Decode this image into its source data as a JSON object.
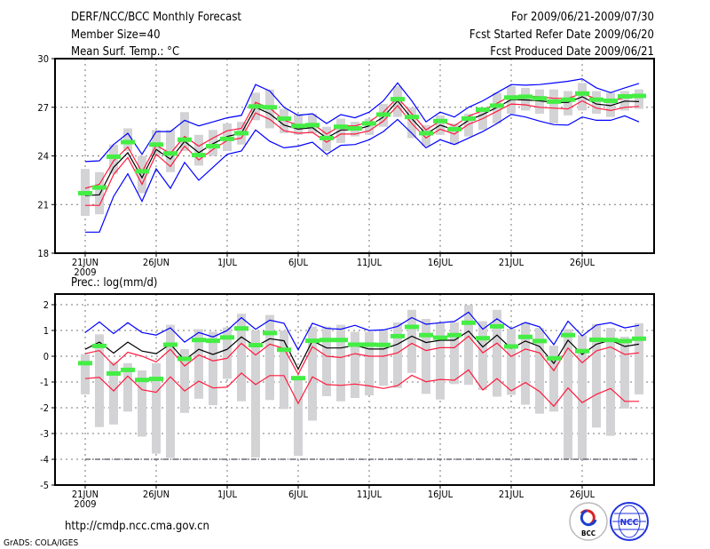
{
  "header": {
    "title": "DERF/NCC/BCC Monthly Forecast",
    "member_size": "Member Size=40",
    "period": "For 2009/06/21-2009/07/30",
    "started": "Fcst Started Refer Date 2009/06/20",
    "produced": "Fcst Produced Date 2009/06/21"
  },
  "footer": {
    "url": "http://cmdp.ncc.cma.gov.cn",
    "credit": "GrADS: COLA/IGES",
    "logos": [
      "BCC",
      "NCC"
    ]
  },
  "colors": {
    "mean": "#000000",
    "spread": "#ff1a3c",
    "envelope": "#0000ff",
    "observed": "#44ee44",
    "box": "#d3d3d6"
  },
  "chart_data": [
    {
      "type": "line",
      "title": "Mean Surf. Temp.: °C",
      "xlabel": "",
      "ylabel": "",
      "ylim": [
        18,
        30
      ],
      "yticks": [
        "18",
        "21",
        "24",
        "27",
        "30"
      ],
      "ytick_values": [
        18,
        21,
        24,
        27,
        30
      ],
      "xticks": [
        "21JUN",
        "26JUN",
        "1JUL",
        "6JUL",
        "11JUL",
        "16JUL",
        "21JUL",
        "26JUL"
      ],
      "xtick_days": [
        0,
        5,
        10,
        15,
        20,
        25,
        30,
        35
      ],
      "year_label": "2009",
      "grid": true,
      "n_days": 40,
      "series": [
        {
          "name": "ensemble-max",
          "color": "envelope",
          "values": [
            23.65,
            23.7,
            24.7,
            25.4,
            24.1,
            25.5,
            25.5,
            26.2,
            25.85,
            26.1,
            26.35,
            26.5,
            28.4,
            28.0,
            27.0,
            26.5,
            26.6,
            26.0,
            26.55,
            26.35,
            26.7,
            27.4,
            28.5,
            27.4,
            26.1,
            26.7,
            26.4,
            27.0,
            27.4,
            27.9,
            28.4,
            28.36,
            28.4,
            28.5,
            28.6,
            28.75,
            28.2,
            27.9,
            28.2,
            28.47
          ]
        },
        {
          "name": "ensemble-min",
          "color": "envelope",
          "values": [
            19.3,
            19.3,
            21.5,
            22.9,
            21.2,
            23.2,
            22.0,
            23.6,
            22.5,
            23.3,
            24.1,
            24.3,
            25.6,
            24.9,
            24.5,
            24.6,
            24.85,
            24.1,
            24.65,
            24.7,
            25.0,
            25.5,
            26.25,
            25.4,
            24.5,
            25.0,
            24.7,
            25.1,
            25.5,
            26.0,
            26.56,
            26.4,
            26.15,
            25.93,
            25.9,
            26.4,
            26.2,
            26.2,
            26.47,
            26.1
          ]
        },
        {
          "name": "spread-upper",
          "color": "spread",
          "values": [
            22.0,
            22.25,
            23.7,
            24.55,
            23.0,
            24.65,
            24.15,
            25.2,
            24.6,
            25.1,
            25.55,
            25.7,
            27.3,
            26.95,
            26.2,
            25.9,
            26.0,
            25.35,
            25.85,
            25.85,
            26.1,
            26.7,
            27.6,
            26.6,
            25.6,
            26.15,
            25.85,
            26.45,
            26.8,
            27.25,
            27.7,
            27.7,
            27.65,
            27.55,
            27.55,
            27.85,
            27.5,
            27.35,
            27.6,
            27.6
          ]
        },
        {
          "name": "spread-lower",
          "color": "spread",
          "values": [
            20.95,
            20.95,
            22.85,
            23.9,
            22.25,
            24.1,
            23.35,
            24.6,
            23.75,
            24.4,
            24.95,
            25.1,
            26.65,
            26.25,
            25.55,
            25.4,
            25.45,
            24.85,
            25.35,
            25.35,
            25.55,
            26.15,
            27.1,
            26.0,
            25.1,
            25.65,
            25.35,
            25.95,
            26.3,
            26.75,
            27.2,
            27.15,
            27.0,
            26.95,
            26.9,
            27.4,
            26.95,
            26.8,
            27.0,
            27.05
          ]
        },
        {
          "name": "ensemble-mean",
          "color": "mean",
          "values": [
            21.56,
            21.6,
            23.3,
            24.2,
            22.65,
            24.4,
            23.8,
            24.9,
            24.2,
            24.75,
            25.2,
            25.4,
            27.0,
            26.6,
            25.9,
            25.65,
            25.75,
            25.1,
            25.6,
            25.6,
            25.85,
            26.4,
            27.4,
            26.3,
            25.35,
            25.9,
            25.6,
            26.2,
            26.56,
            27.0,
            27.47,
            27.45,
            27.4,
            27.3,
            27.3,
            27.65,
            27.2,
            27.1,
            27.38,
            27.35
          ]
        }
      ],
      "markers": {
        "name": "observed",
        "color": "observed",
        "values": [
          21.7,
          22.05,
          23.95,
          24.85,
          23.05,
          24.7,
          24.15,
          25.0,
          24.05,
          24.6,
          25.05,
          25.4,
          27.05,
          27.0,
          26.3,
          25.85,
          25.9,
          25.1,
          25.8,
          25.7,
          26.0,
          26.55,
          27.5,
          26.4,
          25.4,
          26.15,
          25.65,
          26.3,
          26.85,
          27.1,
          27.6,
          27.65,
          27.55,
          27.35,
          27.47,
          27.85,
          27.47,
          27.4,
          27.67,
          27.7
        ]
      },
      "boxes": {
        "low": [
          20.3,
          20.4,
          22.9,
          24.3,
          21.7,
          24.0,
          23.0,
          24.3,
          23.4,
          24.0,
          24.3,
          24.7,
          26.2,
          25.7,
          25.4,
          25.3,
          25.4,
          24.3,
          24.8,
          25.2,
          25.3,
          25.8,
          26.4,
          25.1,
          24.6,
          25.3,
          24.7,
          25.2,
          25.6,
          26.0,
          26.6,
          26.8,
          26.6,
          26.0,
          26.5,
          26.8,
          26.6,
          26.4,
          26.8,
          26.9
        ],
        "high": [
          23.2,
          23.0,
          24.7,
          25.7,
          24.0,
          25.6,
          25.6,
          26.7,
          25.3,
          25.6,
          26.0,
          26.1,
          27.9,
          28.1,
          26.9,
          26.6,
          26.6,
          25.8,
          26.3,
          26.1,
          26.3,
          27.2,
          28.3,
          27.0,
          25.9,
          26.5,
          26.0,
          26.6,
          27.0,
          27.9,
          28.3,
          28.2,
          28.1,
          28.1,
          28.0,
          28.5,
          28.0,
          27.9,
          28.0,
          28.1
        ]
      }
    },
    {
      "type": "line",
      "title": "Prec.: log(mm/d)",
      "xlabel": "",
      "ylabel": "",
      "ylim": [
        -5,
        2.45
      ],
      "yticks": [
        "-5",
        "-4",
        "-3",
        "-2",
        "-1",
        "0",
        "1",
        "2"
      ],
      "ytick_values": [
        -5,
        -4,
        -3,
        -2,
        -1,
        0,
        1,
        2
      ],
      "xticks": [
        "21JUN",
        "26JUN",
        "1JUL",
        "6JUL",
        "11JUL",
        "16JUL",
        "21JUL",
        "26JUL"
      ],
      "xtick_days": [
        0,
        5,
        10,
        15,
        20,
        25,
        30,
        35
      ],
      "year_label": "2009",
      "grid": true,
      "n_days": 40,
      "reference_line": -4,
      "series": [
        {
          "name": "ensemble-max",
          "color": "envelope",
          "values": [
            0.92,
            1.33,
            0.88,
            1.3,
            0.92,
            0.82,
            1.1,
            0.55,
            0.92,
            0.75,
            1.0,
            1.5,
            1.05,
            1.4,
            1.28,
            0.25,
            1.28,
            1.08,
            1.05,
            1.2,
            1.0,
            1.02,
            1.16,
            1.5,
            1.24,
            1.3,
            1.35,
            1.71,
            1.05,
            1.45,
            1.07,
            1.31,
            1.14,
            0.45,
            1.36,
            0.79,
            1.21,
            1.3,
            1.1,
            1.2
          ]
        },
        {
          "name": "spread-upper",
          "color": "spread",
          "values": [
            0.1,
            0.22,
            -0.35,
            0.15,
            0.0,
            -0.22,
            0.27,
            -0.38,
            0.05,
            -0.18,
            -0.08,
            0.5,
            0.05,
            0.47,
            0.3,
            -0.7,
            0.37,
            0.0,
            -0.05,
            0.1,
            0.0,
            0.0,
            0.13,
            0.5,
            0.22,
            0.33,
            0.33,
            0.78,
            0.13,
            0.51,
            -0.01,
            0.28,
            0.13,
            -0.56,
            0.32,
            -0.25,
            0.21,
            0.36,
            0.07,
            0.13
          ]
        },
        {
          "name": "spread-lower",
          "color": "spread",
          "values": [
            -0.87,
            -0.82,
            -1.35,
            -0.77,
            -1.3,
            -1.4,
            -0.8,
            -1.35,
            -0.97,
            -1.23,
            -1.2,
            -0.65,
            -1.1,
            -0.75,
            -0.75,
            -1.83,
            -0.8,
            -1.1,
            -1.13,
            -1.08,
            -1.15,
            -1.25,
            -1.14,
            -0.74,
            -0.99,
            -0.9,
            -0.93,
            -0.53,
            -1.31,
            -0.87,
            -1.34,
            -1.02,
            -1.37,
            -1.94,
            -1.23,
            -1.8,
            -1.48,
            -1.25,
            -1.75,
            -1.75
          ]
        },
        {
          "name": "ensemble-mean",
          "color": "mean",
          "values": [
            0.27,
            0.55,
            0.12,
            0.55,
            0.2,
            0.1,
            0.47,
            -0.15,
            0.27,
            0.07,
            0.27,
            0.75,
            0.38,
            0.68,
            0.6,
            -0.5,
            0.6,
            0.32,
            0.32,
            0.42,
            0.28,
            0.28,
            0.47,
            0.78,
            0.53,
            0.62,
            0.62,
            0.98,
            0.36,
            0.82,
            0.3,
            0.59,
            0.38,
            -0.28,
            0.62,
            0.07,
            0.47,
            0.62,
            0.38,
            0.47
          ]
        }
      ],
      "markers": {
        "name": "observed",
        "color": "observed",
        "values": [
          -0.27,
          0.4,
          -0.67,
          -0.53,
          -0.92,
          -0.88,
          0.45,
          -0.1,
          0.63,
          0.6,
          0.73,
          1.08,
          0.43,
          0.9,
          0.25,
          -0.85,
          0.6,
          0.63,
          0.63,
          0.45,
          0.45,
          0.44,
          0.78,
          1.14,
          0.82,
          0.72,
          0.82,
          1.3,
          0.7,
          1.16,
          0.38,
          0.75,
          0.59,
          -0.08,
          0.82,
          0.2,
          0.64,
          0.63,
          0.59,
          0.68
        ]
      },
      "boxes": {
        "low": [
          -1.48,
          -2.75,
          -2.65,
          -2.15,
          -3.12,
          -3.78,
          -3.95,
          -2.2,
          -1.65,
          -1.9,
          -0.88,
          -1.75,
          -3.93,
          -1.7,
          -2.05,
          -3.87,
          -2.5,
          -1.55,
          -1.75,
          -1.62,
          -1.52,
          -1.15,
          -1.23,
          -0.65,
          -1.46,
          -1.68,
          -1.08,
          -1.11,
          -1.31,
          -1.57,
          -1.5,
          -1.88,
          -2.23,
          -2.15,
          -3.99,
          -3.99,
          -2.77,
          -3.09,
          -2.03,
          -1.48
        ],
        "high": [
          0.08,
          0.85,
          -0.22,
          -0.27,
          -0.55,
          -0.27,
          1.22,
          0.28,
          1.05,
          0.95,
          1.12,
          1.65,
          1.0,
          1.6,
          1.0,
          -0.8,
          1.15,
          1.15,
          1.22,
          0.95,
          0.95,
          1.05,
          1.31,
          1.8,
          1.45,
          1.31,
          1.31,
          1.99,
          1.36,
          1.8,
          1.07,
          1.31,
          1.1,
          0.41,
          1.05,
          0.82,
          1.25,
          1.1,
          0.76,
          1.28
        ]
      }
    }
  ]
}
